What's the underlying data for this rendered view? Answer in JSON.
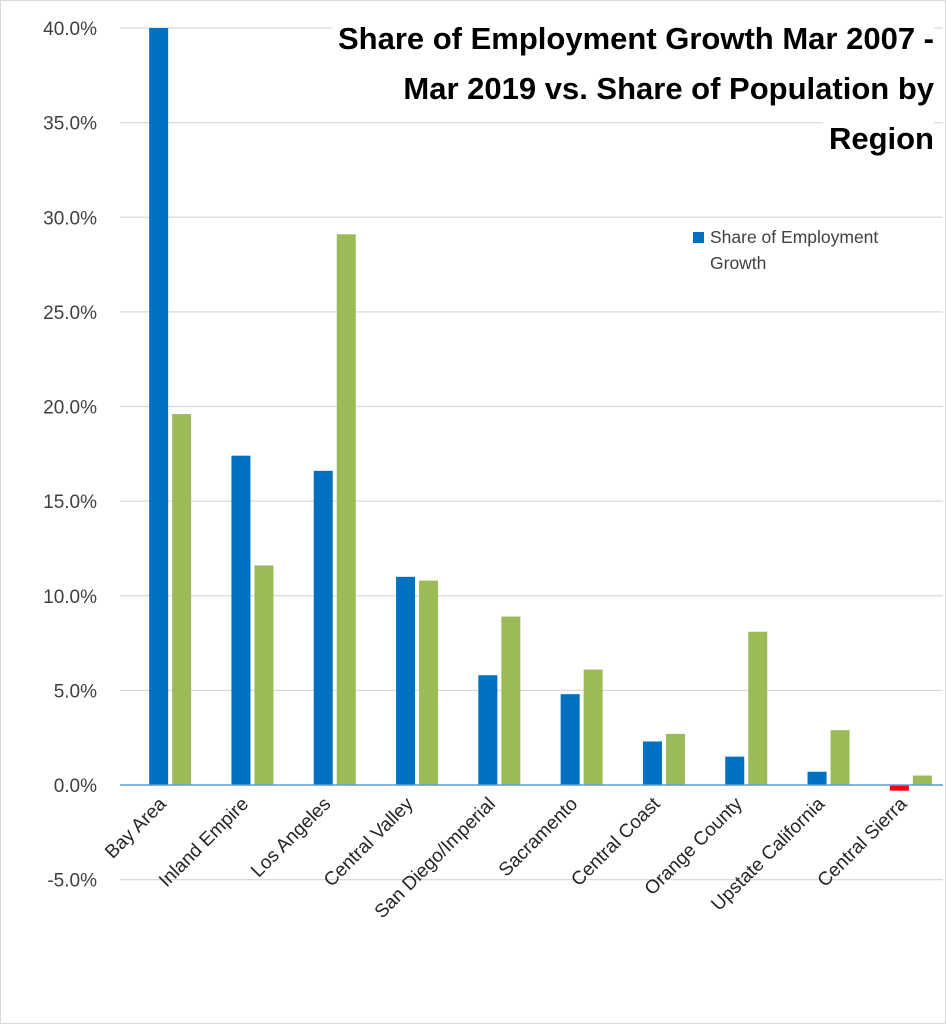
{
  "chart_data": {
    "type": "bar",
    "title": "Share of Employment Growth Mar 2007 - Mar 2019 vs. Share of Population by Region",
    "title_lines": [
      "Share of Employment Growth Mar 2007 -",
      "Mar 2019 vs. Share of Population by",
      "Region"
    ],
    "xlabel": "",
    "ylabel": "",
    "ylim": [
      -5.0,
      40.0
    ],
    "y_tick_step": 5.0,
    "y_ticks": [
      "-5.0%",
      "0.0%",
      "5.0%",
      "10.0%",
      "15.0%",
      "20.0%",
      "25.0%",
      "30.0%",
      "35.0%",
      "40.0%"
    ],
    "y_tick_values": [
      -5,
      0,
      5,
      10,
      15,
      20,
      25,
      30,
      35,
      40
    ],
    "grid": true,
    "legend_position": "top-right",
    "categories": [
      "Bay Area",
      "Inland Empire",
      "Los Angeles",
      "Central Valley",
      "San Diego/Imperial",
      "Sacramento",
      "Central Coast",
      "Orange County",
      "Upstate California",
      "Central Sierra"
    ],
    "series": [
      {
        "name": "Share of Employment Growth",
        "color": "#0070c0",
        "negative_color": "#ff0000",
        "show_in_legend": true,
        "values": [
          40.0,
          17.4,
          16.6,
          11.0,
          5.8,
          4.8,
          2.3,
          1.5,
          0.7,
          -0.3
        ]
      },
      {
        "name": "Share of Population",
        "color": "#9bbb59",
        "show_in_legend": false,
        "values": [
          19.6,
          11.6,
          29.1,
          10.8,
          8.9,
          6.1,
          2.7,
          8.1,
          2.9,
          0.5
        ]
      }
    ],
    "legend_entries": [
      {
        "label": "Share of Employment Growth",
        "color": "#0070c0"
      }
    ]
  },
  "colors": {
    "gridline": "#d9d9d9",
    "zero_axis": "#5b9bd5",
    "tick_label": "#404040",
    "category_label": "#262626",
    "border": "#d9d9d9"
  }
}
